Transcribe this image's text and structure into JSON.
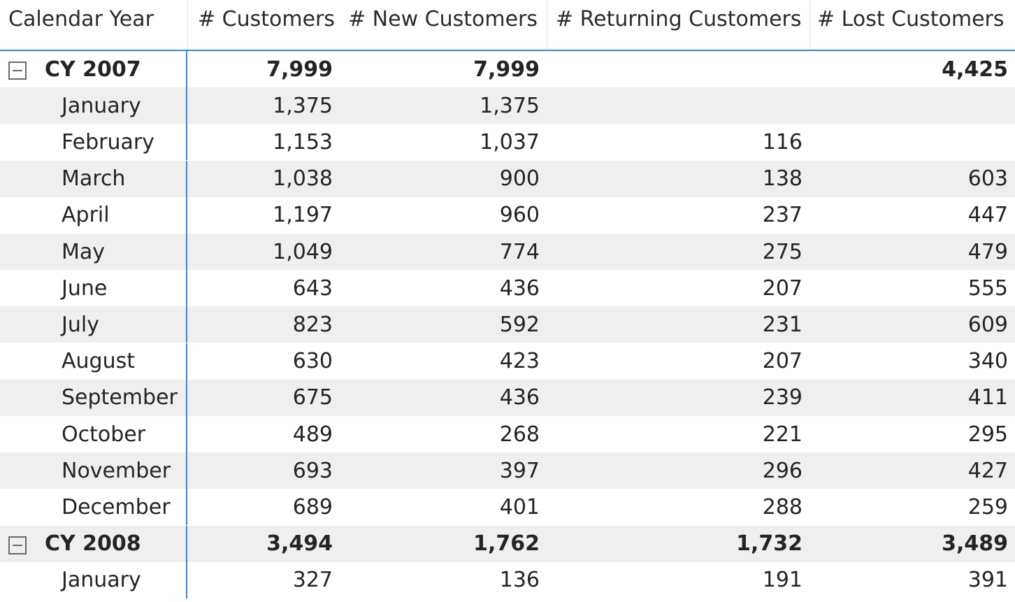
{
  "columns": [
    "Calendar Year",
    "# Customers",
    "# New Customers",
    "# Returning Customers",
    "# Lost Customers"
  ],
  "rows": [
    {
      "type": "year",
      "label": "CY 2007",
      "customers": "7,999",
      "new": "7,999",
      "returning": "",
      "lost": "4,425"
    },
    {
      "type": "month",
      "label": "January",
      "customers": "1,375",
      "new": "1,375",
      "returning": "",
      "lost": ""
    },
    {
      "type": "month",
      "label": "February",
      "customers": "1,153",
      "new": "1,037",
      "returning": "116",
      "lost": ""
    },
    {
      "type": "month",
      "label": "March",
      "customers": "1,038",
      "new": "900",
      "returning": "138",
      "lost": "603"
    },
    {
      "type": "month",
      "label": "April",
      "customers": "1,197",
      "new": "960",
      "returning": "237",
      "lost": "447"
    },
    {
      "type": "month",
      "label": "May",
      "customers": "1,049",
      "new": "774",
      "returning": "275",
      "lost": "479"
    },
    {
      "type": "month",
      "label": "June",
      "customers": "643",
      "new": "436",
      "returning": "207",
      "lost": "555"
    },
    {
      "type": "month",
      "label": "July",
      "customers": "823",
      "new": "592",
      "returning": "231",
      "lost": "609"
    },
    {
      "type": "month",
      "label": "August",
      "customers": "630",
      "new": "423",
      "returning": "207",
      "lost": "340"
    },
    {
      "type": "month",
      "label": "September",
      "customers": "675",
      "new": "436",
      "returning": "239",
      "lost": "411"
    },
    {
      "type": "month",
      "label": "October",
      "customers": "489",
      "new": "268",
      "returning": "221",
      "lost": "295"
    },
    {
      "type": "month",
      "label": "November",
      "customers": "693",
      "new": "397",
      "returning": "296",
      "lost": "427"
    },
    {
      "type": "month",
      "label": "December",
      "customers": "689",
      "new": "401",
      "returning": "288",
      "lost": "259"
    },
    {
      "type": "year",
      "label": "CY 2008",
      "customers": "3,494",
      "new": "1,762",
      "returning": "1,732",
      "lost": "3,489"
    },
    {
      "type": "month",
      "label": "January",
      "customers": "327",
      "new": "136",
      "returning": "191",
      "lost": "391"
    }
  ]
}
